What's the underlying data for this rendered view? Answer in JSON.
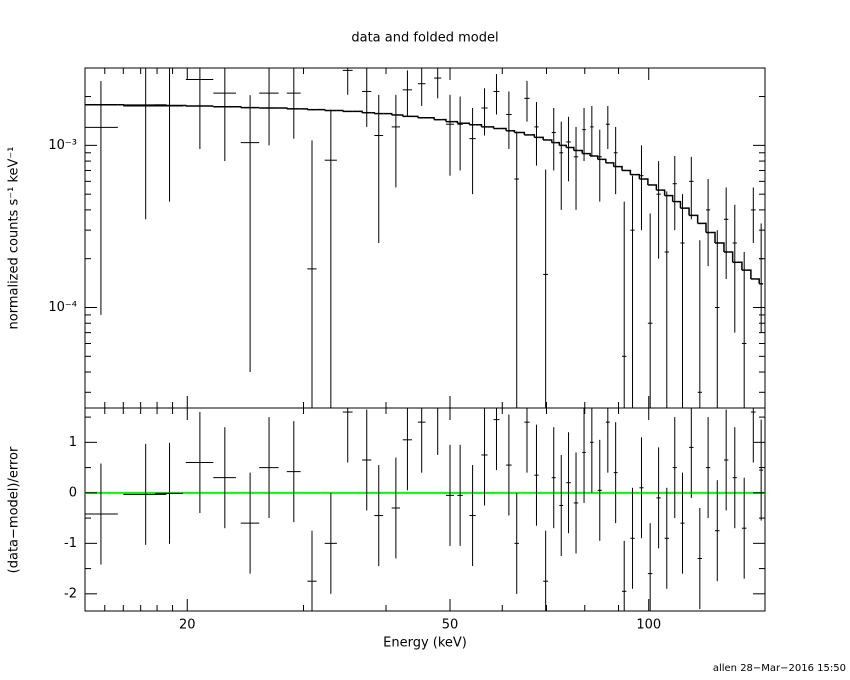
{
  "chart_data": [
    {
      "type": "errorbar",
      "title": "data and folded model",
      "y_label": "normalized counts s⁻¹ keV⁻¹",
      "log_x": true,
      "log_y": true,
      "xlim": [
        14,
        150
      ],
      "ylim": [
        2.4e-05,
        0.003
      ],
      "xticks": [
        20,
        50,
        100
      ],
      "xminor_ticks": [
        15,
        16,
        17,
        18,
        19,
        30,
        40,
        60,
        70,
        80,
        90
      ],
      "yticks": [
        {
          "value": 0.0001,
          "label": "10⁻⁴"
        },
        {
          "value": 0.001,
          "label": "10⁻³"
        }
      ],
      "yminor_ticks": [
        3e-05,
        4e-05,
        5e-05,
        6e-05,
        7e-05,
        8e-05,
        9e-05,
        0.0002,
        0.0003,
        0.0004,
        0.0005,
        0.0006,
        0.0007,
        0.0008,
        0.0009,
        0.002
      ],
      "color": "#000000",
      "x": [
        14.8,
        17.3,
        18.8,
        20.9,
        22.8,
        24.9,
        26.6,
        29.0,
        30.9,
        33.0,
        35.0,
        37.4,
        39.0,
        41.4,
        43.1,
        45.3,
        47.9,
        50.0,
        51.8,
        54.1,
        56.4,
        58.8,
        61.4,
        63.1,
        65.4,
        67.6,
        69.8,
        71.8,
        73.7,
        75.6,
        77.6,
        79.8,
        82.0,
        84.3,
        86.7,
        89.1,
        91.8,
        94.5,
        97.5,
        100.5,
        103.5,
        106.5,
        109.5,
        112.5,
        116,
        119.5,
        123,
        127,
        131,
        135,
        139.5,
        144,
        148
      ],
      "xerr": [
        0.9,
        1.3,
        0.9,
        1.0,
        0.9,
        0.8,
        0.9,
        0.7,
        0.5,
        0.7,
        0.6,
        0.6,
        0.6,
        0.6,
        0.7,
        0.6,
        0.6,
        0.7,
        0.5,
        0.6,
        0.6,
        0.6,
        0.6,
        0.5,
        0.6,
        0.5,
        0.6,
        0.5,
        0.5,
        0.6,
        0.6,
        0.5,
        0.5,
        0.6,
        0.6,
        0.6,
        0.7,
        0.7,
        0.7,
        0.8,
        0.8,
        0.8,
        0.8,
        0.8,
        0.9,
        0.9,
        0.9,
        1.0,
        1.0,
        1.0,
        1.1,
        1.2,
        1.0
      ],
      "values": [
        0.00129,
        0.00175,
        0.00175,
        0.00255,
        0.0021,
        0.00104,
        0.0021,
        0.0021,
        0.000173,
        0.00081,
        0.0029,
        0.00215,
        0.00115,
        0.0013,
        0.0022,
        0.0024,
        0.0026,
        0.00135,
        0.00135,
        0.0011,
        0.0017,
        0.00215,
        0.00155,
        0.00062,
        0.00195,
        0.0013,
        0.00016,
        0.0012,
        0.0009,
        0.00105,
        0.00085,
        0.00125,
        0.0013,
        0.00085,
        0.00135,
        0.0009,
        5e-05,
        0.0003,
        0.00065,
        8e-05,
        0.0005,
        0.00022,
        0.00058,
        0.00025,
        0.0006,
        3e-05,
        0.0004,
        0.0001,
        0.00035,
        0.00025,
        6e-05,
        0.0004,
        0.0002
      ],
      "yerr": [
        0.0012,
        0.0014,
        0.0013,
        0.0016,
        0.0013,
        0.001,
        0.0011,
        0.001,
        0.0009,
        0.00085,
        0.00085,
        0.00085,
        0.0009,
        0.00075,
        0.0007,
        0.00065,
        0.00065,
        0.0007,
        0.00065,
        0.0006,
        0.00055,
        0.0006,
        0.0006,
        0.0006,
        0.00055,
        0.00055,
        0.00055,
        0.0005,
        0.0005,
        0.00045,
        0.00045,
        0.00045,
        0.00045,
        0.0004,
        0.0004,
        0.0004,
        0.0004,
        0.00035,
        0.00035,
        0.0003,
        0.0003,
        0.0003,
        0.00028,
        0.00025,
        0.00025,
        0.00023,
        0.00022,
        0.0002,
        0.0002,
        0.00018,
        0.00016,
        0.00015,
        0.00013
      ],
      "model": {
        "color": "#000000",
        "values": [
          0.00178,
          0.00177,
          0.00176,
          0.00175,
          0.00173,
          0.00171,
          0.0017,
          0.00168,
          0.00166,
          0.00164,
          0.00162,
          0.00159,
          0.00157,
          0.00154,
          0.00151,
          0.00148,
          0.00144,
          0.0014,
          0.00137,
          0.00134,
          0.0013,
          0.00127,
          0.00123,
          0.0012,
          0.00116,
          0.00112,
          0.00108,
          0.00104,
          0.001,
          0.00097,
          0.00093,
          0.00089,
          0.00086,
          0.00082,
          0.00078,
          0.00074,
          0.0007,
          0.00066,
          0.00062,
          0.00057,
          0.00053,
          0.00049,
          0.00045,
          0.00041,
          0.00037,
          0.00033,
          0.00029,
          0.00025,
          0.00022,
          0.00019,
          0.00017,
          0.00015,
          0.00014
        ]
      }
    },
    {
      "type": "residual",
      "y_label": "(data−model)/error",
      "x_label": "Energy (keV)",
      "annotation": "allen 28−Mar−2016 15:50",
      "log_x": true,
      "xlim": [
        14,
        150
      ],
      "ylim": [
        -2.34,
        1.68
      ],
      "xticks": [
        20,
        50,
        100
      ],
      "xminor_ticks": [
        15,
        16,
        17,
        18,
        19,
        30,
        40,
        60,
        70,
        80,
        90
      ],
      "yticks": [
        -2,
        -1,
        0,
        1
      ],
      "yminor_ticks": [
        -1.5,
        -0.5,
        0.5,
        1.5
      ],
      "color": "#000000",
      "yerr": 1,
      "reference_line": {
        "value": 0,
        "color": "#00ff00"
      },
      "x": [
        14.8,
        17.3,
        18.8,
        20.9,
        22.8,
        24.9,
        26.6,
        29.0,
        30.9,
        33.0,
        35.0,
        37.4,
        39.0,
        41.4,
        43.1,
        45.3,
        47.9,
        50.0,
        51.8,
        54.1,
        56.4,
        58.8,
        61.4,
        63.1,
        65.4,
        67.6,
        69.8,
        71.8,
        73.7,
        75.6,
        77.6,
        79.8,
        82.0,
        84.3,
        86.7,
        89.1,
        91.8,
        94.5,
        97.5,
        100.5,
        103.5,
        106.5,
        109.5,
        112.5,
        116,
        119.5,
        123,
        127,
        131,
        135,
        139.5,
        144,
        148
      ],
      "xerr": [
        0.9,
        1.3,
        0.9,
        1.0,
        0.9,
        0.8,
        0.9,
        0.7,
        0.5,
        0.7,
        0.6,
        0.6,
        0.6,
        0.6,
        0.7,
        0.6,
        0.6,
        0.7,
        0.5,
        0.6,
        0.6,
        0.6,
        0.6,
        0.5,
        0.6,
        0.5,
        0.6,
        0.5,
        0.5,
        0.6,
        0.6,
        0.5,
        0.5,
        0.6,
        0.6,
        0.6,
        0.7,
        0.7,
        0.7,
        0.8,
        0.8,
        0.8,
        0.8,
        0.8,
        0.9,
        0.9,
        0.9,
        1.0,
        1.0,
        1.0,
        1.1,
        1.2,
        1.0
      ],
      "values": [
        -0.42,
        -0.03,
        -0.01,
        0.6,
        0.3,
        -0.6,
        0.5,
        0.42,
        -1.75,
        -1.0,
        1.6,
        0.65,
        -0.45,
        -0.3,
        1.05,
        1.4,
        1.75,
        -0.05,
        -0.05,
        -0.45,
        0.75,
        1.45,
        0.55,
        -1.0,
        1.4,
        0.35,
        -1.75,
        0.3,
        -0.25,
        0.2,
        -0.2,
        0.8,
        1.0,
        0.05,
        1.4,
        0.4,
        -1.95,
        -0.9,
        0.1,
        -1.6,
        -0.1,
        -0.9,
        0.5,
        -0.6,
        0.9,
        -1.3,
        0.5,
        -0.75,
        0.65,
        0.3,
        -0.7,
        1.6,
        0.45
      ]
    }
  ]
}
